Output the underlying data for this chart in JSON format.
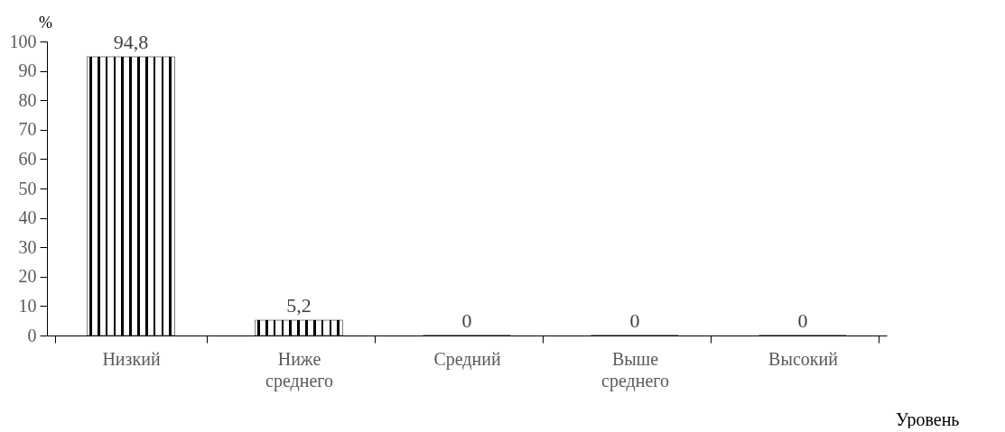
{
  "chart_data": {
    "type": "bar",
    "xlabel": "Уровень",
    "ylabel": "%",
    "categories": [
      "Низкий",
      "Ниже среднего",
      "Средний",
      "Выше среднего",
      "Высокий"
    ],
    "values": [
      94.8,
      5.2,
      0,
      0,
      0
    ],
    "value_labels": [
      "94,8",
      "5,2",
      "0",
      "0",
      "0"
    ],
    "color": "#000000",
    "ylim": [
      0,
      100
    ],
    "yticks": [
      0,
      10,
      20,
      30,
      40,
      50,
      60,
      70,
      80,
      90,
      100
    ],
    "grid": false
  }
}
